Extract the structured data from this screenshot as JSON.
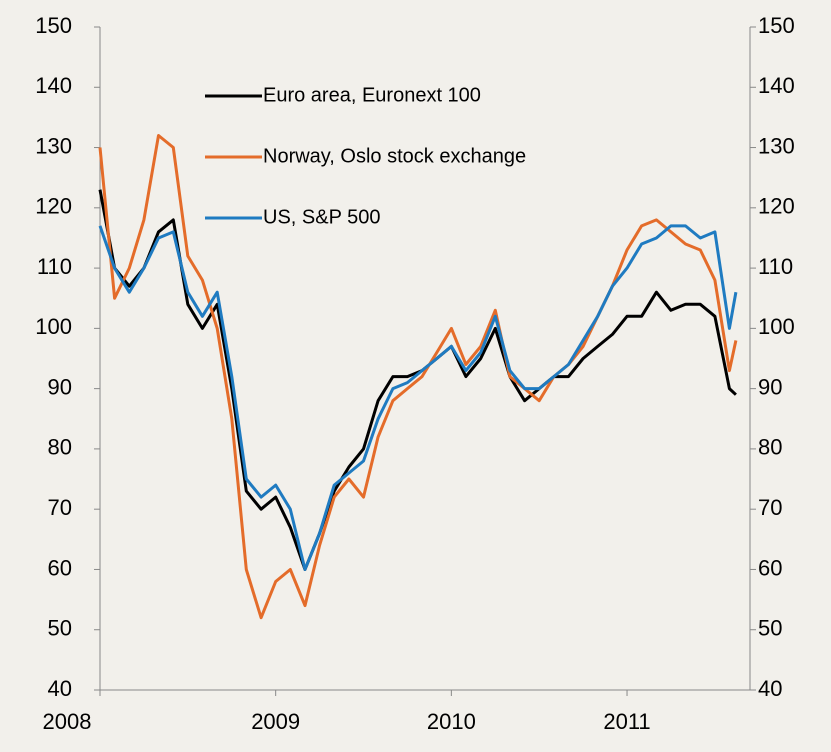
{
  "chart_data": {
    "type": "line",
    "x": [
      2008,
      2008.083,
      2008.167,
      2008.25,
      2008.333,
      2008.417,
      2008.5,
      2008.583,
      2008.667,
      2008.75,
      2008.833,
      2008.917,
      2009,
      2009.083,
      2009.167,
      2009.25,
      2009.333,
      2009.417,
      2009.5,
      2009.583,
      2009.667,
      2009.75,
      2009.833,
      2009.917,
      2010,
      2010.083,
      2010.167,
      2010.25,
      2010.333,
      2010.417,
      2010.5,
      2010.583,
      2010.667,
      2010.75,
      2010.833,
      2010.917,
      2011,
      2011.083,
      2011.167,
      2011.25,
      2011.333,
      2011.417,
      2011.5,
      2011.583,
      2011.62
    ],
    "series": [
      {
        "name": "Euro area, Euronext 100",
        "color": "#000000",
        "values": [
          123,
          110,
          107,
          110,
          116,
          118,
          104,
          100,
          104,
          90,
          73,
          70,
          72,
          67,
          60,
          66,
          73,
          77,
          80,
          88,
          92,
          92,
          93,
          95,
          97,
          92,
          95,
          100,
          92,
          88,
          90,
          92,
          92,
          95,
          97,
          99,
          102,
          102,
          106,
          103,
          104,
          104,
          102,
          90,
          89
        ]
      },
      {
        "name": "Norway, Oslo stock exchange",
        "color": "#e46c2a",
        "values": [
          130,
          105,
          110,
          118,
          132,
          130,
          112,
          108,
          100,
          85,
          60,
          52,
          58,
          60,
          54,
          64,
          72,
          75,
          72,
          82,
          88,
          90,
          92,
          96,
          100,
          94,
          97,
          103,
          92,
          90,
          88,
          92,
          94,
          97,
          102,
          107,
          113,
          117,
          118,
          116,
          114,
          113,
          108,
          93,
          98
        ]
      },
      {
        "name": "US, S&P 500",
        "color": "#1f7bc1",
        "values": [
          117,
          110,
          106,
          110,
          115,
          116,
          106,
          102,
          106,
          92,
          75,
          72,
          74,
          70,
          60,
          66,
          74,
          76,
          78,
          85,
          90,
          91,
          93,
          95,
          97,
          93,
          96,
          102,
          93,
          90,
          90,
          92,
          94,
          98,
          102,
          107,
          110,
          114,
          115,
          117,
          117,
          115,
          116,
          100,
          106
        ]
      }
    ],
    "xlim": [
      2008,
      2011.7
    ],
    "xticks": [
      2008,
      2009,
      2010,
      2011
    ],
    "ylim": [
      40,
      150
    ],
    "yticks": [
      40,
      50,
      60,
      70,
      80,
      90,
      100,
      110,
      120,
      130,
      140,
      150
    ],
    "y2lim": [
      40,
      150
    ],
    "y2ticks": [
      40,
      50,
      60,
      70,
      80,
      90,
      100,
      110,
      120,
      130,
      140,
      150
    ],
    "legend": "upper left"
  }
}
